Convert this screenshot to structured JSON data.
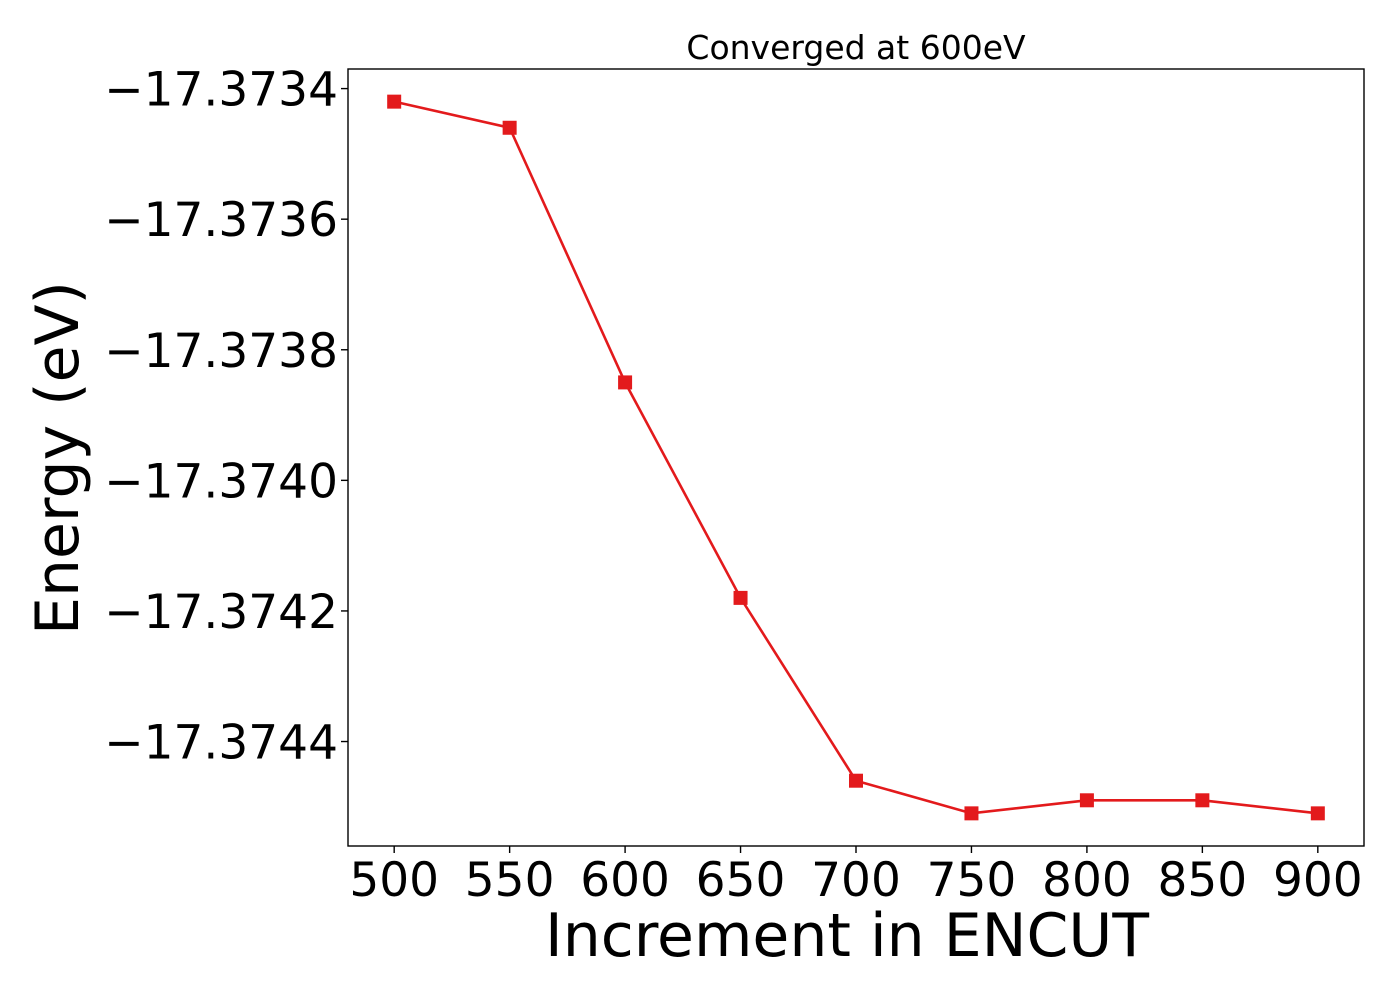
{
  "chart_data": {
    "type": "line",
    "title": "Converged at 600eV",
    "xlabel": "Increment in ENCUT",
    "ylabel": "Energy (eV)",
    "x": [
      500,
      550,
      600,
      650,
      700,
      750,
      800,
      850,
      900
    ],
    "series": [
      {
        "values": [
          -17.37342,
          -17.37346,
          -17.37385,
          -17.37418,
          -17.37446,
          -17.37451,
          -17.37449,
          -17.37449,
          -17.37451
        ],
        "color": "#e31a1c",
        "marker": "square"
      }
    ],
    "xlim": [
      480,
      920
    ],
    "ylim": [
      -17.37456,
      -17.37337
    ],
    "x_ticks": [
      500,
      550,
      600,
      650,
      700,
      750,
      800,
      850,
      900
    ],
    "x_tick_labels": [
      "500",
      "550",
      "600",
      "650",
      "700",
      "750",
      "800",
      "850",
      "900"
    ],
    "y_ticks": [
      -17.3734,
      -17.3736,
      -17.3738,
      -17.374,
      -17.3742,
      -17.3744
    ],
    "y_tick_labels": [
      "−17.3734",
      "−17.3736",
      "−17.3738",
      "−17.3740",
      "−17.3742",
      "−17.3744"
    ],
    "grid": false,
    "legend": "none"
  }
}
